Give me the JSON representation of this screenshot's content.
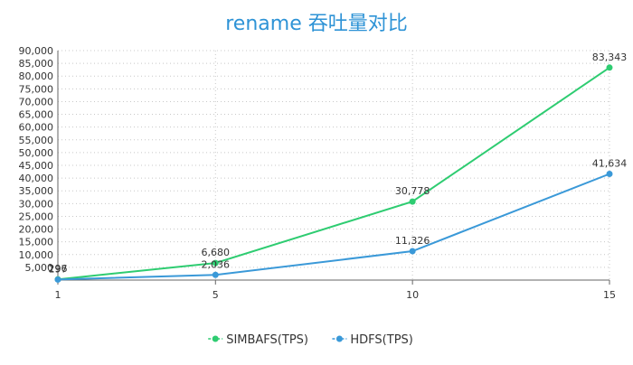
{
  "chart_data": {
    "type": "line",
    "title": "rename 吞吐量对比",
    "x": [
      1,
      5,
      10,
      15
    ],
    "series": [
      {
        "name": "SIMBAFS(TPS)",
        "color": "#2ecc71",
        "values": [
          296,
          6680,
          30778,
          83343
        ]
      },
      {
        "name": "HDFS(TPS)",
        "color": "#3a99d8",
        "values": [
          197,
          2036,
          11326,
          41634
        ]
      }
    ],
    "x_tick_labels": [
      "1",
      "5",
      "10",
      "15"
    ],
    "y_ticks": [
      5000,
      10000,
      15000,
      20000,
      25000,
      30000,
      35000,
      40000,
      45000,
      50000,
      55000,
      60000,
      65000,
      70000,
      75000,
      80000,
      85000,
      90000
    ],
    "y_tick_labels": [
      "5,000",
      "10,000",
      "15,000",
      "20,000",
      "25,000",
      "30,000",
      "35,000",
      "40,000",
      "45,000",
      "50,000",
      "55,000",
      "60,000",
      "65,000",
      "70,000",
      "75,000",
      "80,000",
      "85,000",
      "90,000"
    ],
    "ylim": [
      0,
      90000
    ],
    "xlabel": "",
    "ylabel": "",
    "grid": "dotted",
    "legend": "bottom-center"
  }
}
